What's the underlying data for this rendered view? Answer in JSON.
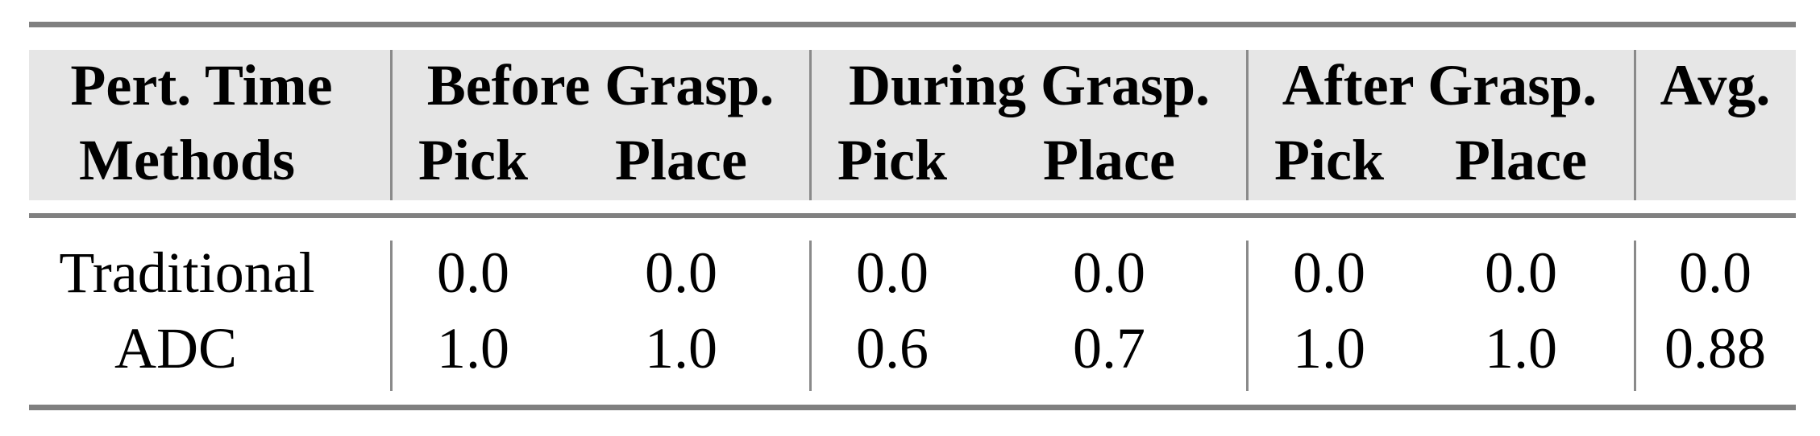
{
  "table": {
    "header_row1": [
      "Pert. Time",
      "Before Grasp.",
      "During Grasp.",
      "After Grasp.",
      "Avg."
    ],
    "header_row2": [
      "Methods",
      "Pick",
      "Place",
      "Pick",
      "Place",
      "Pick",
      "Place"
    ],
    "rows": [
      {
        "method": "Traditional",
        "values": [
          "0.0",
          "0.0",
          "0.0",
          "0.0",
          "0.0",
          "0.0",
          "0.0"
        ]
      },
      {
        "method": "ADC",
        "values": [
          "1.0",
          "1.0",
          "0.6",
          "0.7",
          "1.0",
          "1.0",
          "0.88"
        ]
      }
    ],
    "colors": {
      "header_bg": "#e6e6e6",
      "rule": "#808080"
    }
  }
}
